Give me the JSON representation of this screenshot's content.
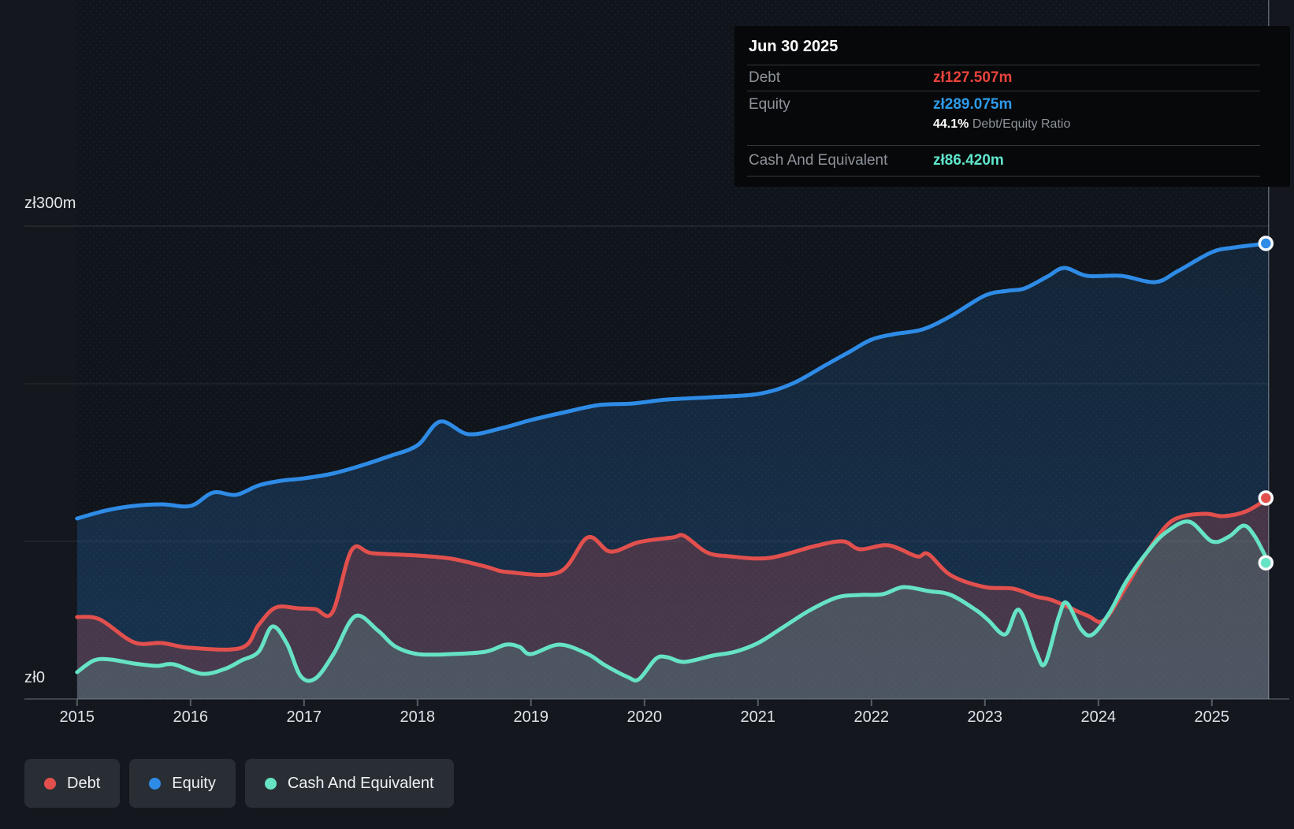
{
  "page": {
    "background": "#14171d"
  },
  "tooltip": {
    "date": "Jun 30 2025",
    "debt_label": "Debt",
    "debt_value": "zł127.507m",
    "debt_color": "#e8433c",
    "equity_label": "Equity",
    "equity_value": "zł289.075m",
    "equity_color": "#2f9ae8",
    "ratio_value": "44.1%",
    "ratio_label": "Debt/Equity Ratio",
    "cash_label": "Cash And Equivalent",
    "cash_value": "zł86.420m",
    "cash_color": "#5fe6cc"
  },
  "legend": {
    "items": [
      {
        "label": "Debt",
        "color": "#e2504d"
      },
      {
        "label": "Equity",
        "color": "#2e8be6"
      },
      {
        "label": "Cash And Equivalent",
        "color": "#66e3c4"
      }
    ]
  },
  "axis": {
    "y_labels": [
      {
        "text": "zł300m",
        "value": 300
      },
      {
        "text": "zł0",
        "value": 0
      }
    ],
    "x_labels": [
      "2015",
      "2016",
      "2017",
      "2018",
      "2019",
      "2020",
      "2021",
      "2022",
      "2023",
      "2024",
      "2025"
    ]
  },
  "chart_data": {
    "type": "area",
    "unit": "zł millions",
    "x_range": [
      2015,
      2025.5
    ],
    "y_range": [
      0,
      300
    ],
    "gridlines": [
      300,
      200,
      100,
      0
    ],
    "grid": true,
    "legend_position": "bottom-left",
    "crosshair_x": 2025.5,
    "series": [
      {
        "name": "Debt",
        "color": "#e2504d",
        "end_value": 127.507,
        "end_label": "zł127.507m",
        "points": [
          [
            2015.0,
            52
          ],
          [
            2015.2,
            50.5
          ],
          [
            2015.5,
            36
          ],
          [
            2015.75,
            35.5
          ],
          [
            2016.0,
            32.5
          ],
          [
            2016.45,
            32.5
          ],
          [
            2016.6,
            47
          ],
          [
            2016.75,
            58
          ],
          [
            2016.95,
            57.5
          ],
          [
            2017.1,
            57
          ],
          [
            2017.25,
            55
          ],
          [
            2017.42,
            94.5
          ],
          [
            2017.6,
            92.5
          ],
          [
            2018.0,
            91
          ],
          [
            2018.3,
            89
          ],
          [
            2018.6,
            84
          ],
          [
            2018.8,
            80.5
          ],
          [
            2019.25,
            80.5
          ],
          [
            2019.5,
            102.5
          ],
          [
            2019.7,
            93.5
          ],
          [
            2019.95,
            99.5
          ],
          [
            2020.25,
            102.5
          ],
          [
            2020.35,
            103.5
          ],
          [
            2020.55,
            93
          ],
          [
            2020.75,
            90.5
          ],
          [
            2021.1,
            89.5
          ],
          [
            2021.5,
            97
          ],
          [
            2021.75,
            100
          ],
          [
            2021.9,
            95
          ],
          [
            2022.15,
            97.5
          ],
          [
            2022.4,
            90.5
          ],
          [
            2022.5,
            92
          ],
          [
            2022.7,
            78.5
          ],
          [
            2023.0,
            71
          ],
          [
            2023.25,
            70
          ],
          [
            2023.45,
            65
          ],
          [
            2023.6,
            62.5
          ],
          [
            2023.9,
            53
          ],
          [
            2024.05,
            50
          ],
          [
            2024.25,
            72
          ],
          [
            2024.4,
            90
          ],
          [
            2024.6,
            110
          ],
          [
            2024.75,
            116
          ],
          [
            2024.95,
            117.5
          ],
          [
            2025.1,
            116
          ],
          [
            2025.3,
            119
          ],
          [
            2025.5,
            127.507
          ]
        ]
      },
      {
        "name": "Equity",
        "color": "#2e8be6",
        "end_value": 289.075,
        "end_label": "zł289.075m",
        "points": [
          [
            2015.0,
            114.5
          ],
          [
            2015.25,
            119.5
          ],
          [
            2015.5,
            122.5
          ],
          [
            2015.75,
            123.5
          ],
          [
            2016.0,
            122.5
          ],
          [
            2016.2,
            131
          ],
          [
            2016.4,
            129.5
          ],
          [
            2016.6,
            135.5
          ],
          [
            2016.8,
            138.5
          ],
          [
            2017.0,
            140
          ],
          [
            2017.25,
            143
          ],
          [
            2017.5,
            148
          ],
          [
            2017.75,
            154
          ],
          [
            2018.0,
            161
          ],
          [
            2018.2,
            176
          ],
          [
            2018.45,
            168
          ],
          [
            2018.75,
            172
          ],
          [
            2019.0,
            177
          ],
          [
            2019.3,
            182
          ],
          [
            2019.6,
            186.5
          ],
          [
            2019.9,
            187.5
          ],
          [
            2020.2,
            190
          ],
          [
            2020.6,
            191.5
          ],
          [
            2021.0,
            193.5
          ],
          [
            2021.3,
            200
          ],
          [
            2021.6,
            212
          ],
          [
            2021.8,
            220
          ],
          [
            2022.0,
            228
          ],
          [
            2022.2,
            231.5
          ],
          [
            2022.45,
            234.5
          ],
          [
            2022.7,
            243
          ],
          [
            2023.0,
            256
          ],
          [
            2023.2,
            259
          ],
          [
            2023.35,
            260.5
          ],
          [
            2023.55,
            268
          ],
          [
            2023.7,
            273.5
          ],
          [
            2023.9,
            268.5
          ],
          [
            2024.2,
            268.5
          ],
          [
            2024.5,
            264.5
          ],
          [
            2024.7,
            271.5
          ],
          [
            2025.0,
            283.5
          ],
          [
            2025.2,
            286.5
          ],
          [
            2025.5,
            289.075
          ]
        ]
      },
      {
        "name": "Cash And Equivalent",
        "color": "#66e3c4",
        "end_value": 86.42,
        "end_label": "zł86.420m",
        "points": [
          [
            2015.0,
            17
          ],
          [
            2015.15,
            24.5
          ],
          [
            2015.3,
            25
          ],
          [
            2015.5,
            22.5
          ],
          [
            2015.7,
            21
          ],
          [
            2015.85,
            22
          ],
          [
            2016.1,
            16
          ],
          [
            2016.3,
            19
          ],
          [
            2016.45,
            24.5
          ],
          [
            2016.6,
            30
          ],
          [
            2016.72,
            46
          ],
          [
            2016.85,
            35
          ],
          [
            2016.97,
            14.5
          ],
          [
            2017.1,
            13
          ],
          [
            2017.26,
            28.5
          ],
          [
            2017.45,
            52.5
          ],
          [
            2017.65,
            43.5
          ],
          [
            2017.8,
            33.5
          ],
          [
            2018.0,
            28.5
          ],
          [
            2018.3,
            28.5
          ],
          [
            2018.6,
            30
          ],
          [
            2018.78,
            34.5
          ],
          [
            2018.9,
            33
          ],
          [
            2019.0,
            28.5
          ],
          [
            2019.25,
            34.5
          ],
          [
            2019.5,
            28.5
          ],
          [
            2019.65,
            21.5
          ],
          [
            2019.85,
            14
          ],
          [
            2019.95,
            12.5
          ],
          [
            2020.1,
            25.5
          ],
          [
            2020.2,
            26.5
          ],
          [
            2020.35,
            23.5
          ],
          [
            2020.6,
            27.5
          ],
          [
            2020.8,
            30
          ],
          [
            2021.0,
            35.5
          ],
          [
            2021.2,
            44.5
          ],
          [
            2021.45,
            56
          ],
          [
            2021.7,
            64.5
          ],
          [
            2021.9,
            66
          ],
          [
            2022.1,
            66.5
          ],
          [
            2022.28,
            71
          ],
          [
            2022.5,
            68.5
          ],
          [
            2022.7,
            66
          ],
          [
            2022.93,
            56
          ],
          [
            2023.03,
            50
          ],
          [
            2023.18,
            41
          ],
          [
            2023.3,
            56.5
          ],
          [
            2023.45,
            30
          ],
          [
            2023.53,
            22.5
          ],
          [
            2023.65,
            52
          ],
          [
            2023.72,
            61
          ],
          [
            2023.85,
            44
          ],
          [
            2023.95,
            41
          ],
          [
            2024.1,
            55
          ],
          [
            2024.25,
            75
          ],
          [
            2024.45,
            95
          ],
          [
            2024.6,
            106
          ],
          [
            2024.8,
            112.5
          ],
          [
            2025.0,
            100
          ],
          [
            2025.15,
            103
          ],
          [
            2025.28,
            110
          ],
          [
            2025.38,
            103
          ],
          [
            2025.5,
            86.42
          ]
        ]
      }
    ]
  }
}
